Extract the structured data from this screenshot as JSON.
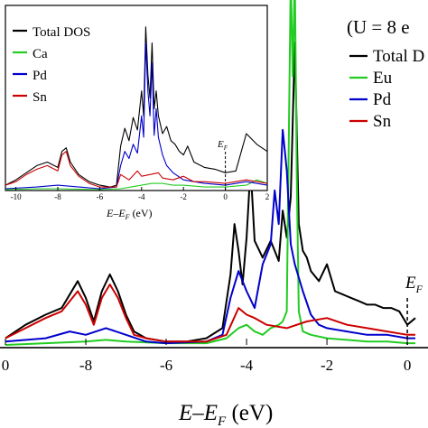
{
  "main": {
    "annotation": "(U = 8 e",
    "ef_label": "E",
    "ef_sub": "F",
    "x_label_main": "E–E",
    "x_label_sub": "F",
    "x_label_unit": " (eV)",
    "legend": [
      {
        "label": "Total D",
        "color": "#000000"
      },
      {
        "label": "Eu",
        "color": "#22cc22"
      },
      {
        "label": "Pd",
        "color": "#0000cc"
      },
      {
        "label": "Sn",
        "color": "#cc0000"
      }
    ],
    "ticks": [
      "0",
      "-8",
      "-6",
      "-4",
      "-2",
      "0"
    ]
  },
  "inset": {
    "ef_label": "E",
    "ef_sub": "F",
    "x_label_main": "E–E",
    "x_label_sub": "F",
    "x_label_unit": " (eV)",
    "legend": [
      {
        "label": "Total DOS",
        "color": "#000000"
      },
      {
        "label": "Ca",
        "color": "#22cc22"
      },
      {
        "label": "Pd",
        "color": "#0000cc"
      },
      {
        "label": "Sn",
        "color": "#cc0000"
      }
    ],
    "ticks": [
      "-10",
      "-8",
      "-6",
      "-4",
      "-2",
      "0",
      "2"
    ]
  },
  "chart_data": [
    {
      "type": "line",
      "xlim": [
        -10,
        0.2
      ],
      "ylim": [
        0,
        10
      ],
      "ef_x": 0,
      "series": [
        {
          "name": "Total D",
          "color": "#000000",
          "x": [
            -10,
            -9.5,
            -9,
            -8.6,
            -8.4,
            -8.2,
            -8,
            -7.8,
            -7.6,
            -7.4,
            -7.2,
            -7,
            -6.8,
            -6.5,
            -6,
            -5.5,
            -5,
            -4.6,
            -4.4,
            -4.3,
            -4.2,
            -4.1,
            -4,
            -3.9,
            -3.8,
            -3.6,
            -3.4,
            -3.2,
            -3.1,
            -3,
            -2.9,
            -2.8,
            -2.7,
            -2.6,
            -2.5,
            -2.4,
            -2.2,
            -2,
            -1.8,
            -1.6,
            -1.4,
            -1.2,
            -1,
            -0.8,
            -0.6,
            -0.4,
            -0.2,
            0,
            0.2
          ],
          "y": [
            0.2,
            0.6,
            0.9,
            1.1,
            1.5,
            1.9,
            1.4,
            0.7,
            1.6,
            2.1,
            1.6,
            0.9,
            0.4,
            0.2,
            0.1,
            0.1,
            0.2,
            0.5,
            2.1,
            3.6,
            2.8,
            1.8,
            3.2,
            5.3,
            3.1,
            2.6,
            3.1,
            2.5,
            4,
            3.2,
            4.4,
            9,
            3.6,
            2.8,
            2.6,
            2.2,
            1.9,
            2.4,
            1.6,
            1.5,
            1.4,
            1.3,
            1.2,
            1.2,
            1.1,
            1.1,
            1,
            0.6,
            0.8
          ]
        },
        {
          "name": "Eu",
          "color": "#22cc22",
          "x": [
            -10,
            -9,
            -8,
            -7.5,
            -7,
            -6,
            -5,
            -4.5,
            -4.2,
            -4,
            -3.8,
            -3.6,
            -3.4,
            -3.2,
            -3.1,
            -3,
            -2.95,
            -2.9,
            -2.85,
            -2.8,
            -2.75,
            -2.7,
            -2.6,
            -2.4,
            -2,
            -1.5,
            -1,
            -0.5,
            0,
            0.2
          ],
          "y": [
            0,
            0.05,
            0.1,
            0.15,
            0.1,
            0.05,
            0.05,
            0.2,
            0.5,
            0.6,
            0.4,
            0.3,
            0.5,
            0.6,
            0.7,
            1,
            6,
            11,
            8,
            11,
            5,
            1,
            0.4,
            0.3,
            0.2,
            0.15,
            0.1,
            0.1,
            0.05,
            0.05
          ]
        },
        {
          "name": "Pd",
          "color": "#0000cc",
          "x": [
            -10,
            -9,
            -8.4,
            -8,
            -7.5,
            -7,
            -6.5,
            -6,
            -5,
            -4.6,
            -4.4,
            -4.2,
            -4,
            -3.8,
            -3.6,
            -3.4,
            -3.3,
            -3.2,
            -3.1,
            -3,
            -2.9,
            -2.8,
            -2.6,
            -2.4,
            -2.2,
            -2,
            -1.5,
            -1,
            -0.5,
            0,
            0.2
          ],
          "y": [
            0.1,
            0.2,
            0.4,
            0.3,
            0.5,
            0.3,
            0.1,
            0.05,
            0.1,
            0.3,
            1.4,
            2.2,
            1.6,
            1.1,
            2.4,
            3,
            4.6,
            3.6,
            6.4,
            5.2,
            3,
            2.4,
            1.6,
            0.9,
            0.6,
            0.5,
            0.4,
            0.3,
            0.3,
            0.2,
            0.2
          ]
        },
        {
          "name": "Sn",
          "color": "#cc0000",
          "x": [
            -10,
            -9.5,
            -9,
            -8.6,
            -8.4,
            -8.2,
            -8,
            -7.8,
            -7.6,
            -7.4,
            -7.2,
            -7,
            -6.8,
            -6.5,
            -6,
            -5,
            -4.5,
            -4.2,
            -4,
            -3.8,
            -3.5,
            -3,
            -2.5,
            -2,
            -1.5,
            -1,
            -0.5,
            0,
            0.2
          ],
          "y": [
            0.2,
            0.5,
            0.8,
            1,
            1.3,
            1.6,
            1.2,
            0.6,
            1.4,
            1.8,
            1.4,
            0.8,
            0.3,
            0.2,
            0.1,
            0.1,
            0.3,
            1.1,
            0.9,
            0.8,
            0.6,
            0.5,
            0.7,
            0.8,
            0.6,
            0.5,
            0.4,
            0.3,
            0.3
          ]
        }
      ]
    },
    {
      "type": "line",
      "xlim": [
        -10.5,
        2
      ],
      "ylim": [
        0,
        10
      ],
      "ef_x": 0,
      "series": [
        {
          "name": "Total DOS",
          "color": "#000000",
          "x": [
            -10.5,
            -10,
            -9.5,
            -9,
            -8.5,
            -8,
            -7.8,
            -7.6,
            -7.4,
            -7,
            -6.5,
            -6,
            -5.5,
            -5.2,
            -5,
            -4.8,
            -4.6,
            -4.4,
            -4.2,
            -4,
            -3.9,
            -3.8,
            -3.7,
            -3.6,
            -3.5,
            -3.4,
            -3.3,
            -3.2,
            -3,
            -2.8,
            -2.6,
            -2.4,
            -2.2,
            -2,
            -1.8,
            -1.5,
            -1,
            -0.5,
            0,
            0.5,
            1,
            1.5,
            2
          ],
          "y": [
            0.3,
            0.6,
            1,
            1.4,
            1.6,
            1.3,
            2.2,
            2.4,
            1.6,
            0.9,
            0.5,
            0.3,
            0.2,
            0.3,
            2.5,
            3.5,
            2.8,
            4.1,
            3.4,
            5.6,
            4.2,
            9.2,
            6.5,
            5.2,
            8.3,
            4.6,
            5.6,
            4.2,
            3.2,
            3.6,
            2.8,
            2.6,
            2.2,
            2,
            2.5,
            1.6,
            1.3,
            1.2,
            1,
            1.1,
            3.2,
            2.6,
            2.2
          ]
        },
        {
          "name": "Ca",
          "color": "#22cc22",
          "x": [
            -10.5,
            -9,
            -8,
            -6,
            -5,
            -4.5,
            -4,
            -3.5,
            -3,
            -2.5,
            -2,
            -1,
            0,
            1,
            1.5,
            2
          ],
          "y": [
            0.05,
            0.1,
            0.1,
            0.05,
            0.1,
            0.2,
            0.3,
            0.4,
            0.4,
            0.3,
            0.3,
            0.2,
            0.2,
            0.3,
            0.6,
            0.4
          ]
        },
        {
          "name": "Pd",
          "color": "#0000cc",
          "x": [
            -10.5,
            -9,
            -8,
            -7,
            -6,
            -5.2,
            -5,
            -4.8,
            -4.6,
            -4.4,
            -4.2,
            -4,
            -3.9,
            -3.8,
            -3.7,
            -3.6,
            -3.5,
            -3.4,
            -3.3,
            -3.2,
            -3,
            -2.8,
            -2.5,
            -2,
            -1,
            0,
            1,
            2
          ],
          "y": [
            0.1,
            0.2,
            0.3,
            0.2,
            0.1,
            0.2,
            1.4,
            2.2,
            1.8,
            2.6,
            2.1,
            4.2,
            3,
            8.3,
            5.6,
            4.2,
            7.2,
            3.1,
            4.6,
            3,
            2,
            1.4,
            1,
            0.6,
            0.4,
            0.3,
            0.5,
            0.3
          ]
        },
        {
          "name": "Sn",
          "color": "#cc0000",
          "x": [
            -10.5,
            -10,
            -9.5,
            -9,
            -8.5,
            -8,
            -7.8,
            -7.6,
            -7.4,
            -7,
            -6.5,
            -6,
            -5.2,
            -5,
            -4.6,
            -4.2,
            -4,
            -3.6,
            -3.2,
            -3,
            -2.5,
            -2,
            -1.5,
            -1,
            0,
            1,
            2
          ],
          "y": [
            0.3,
            0.5,
            0.9,
            1.2,
            1.4,
            1.1,
            2,
            2.2,
            1.4,
            0.8,
            0.4,
            0.2,
            0.2,
            0.9,
            0.6,
            1.1,
            0.8,
            0.9,
            1,
            0.7,
            0.6,
            0.8,
            0.5,
            0.5,
            0.4,
            0.6,
            0.4
          ]
        }
      ]
    }
  ]
}
